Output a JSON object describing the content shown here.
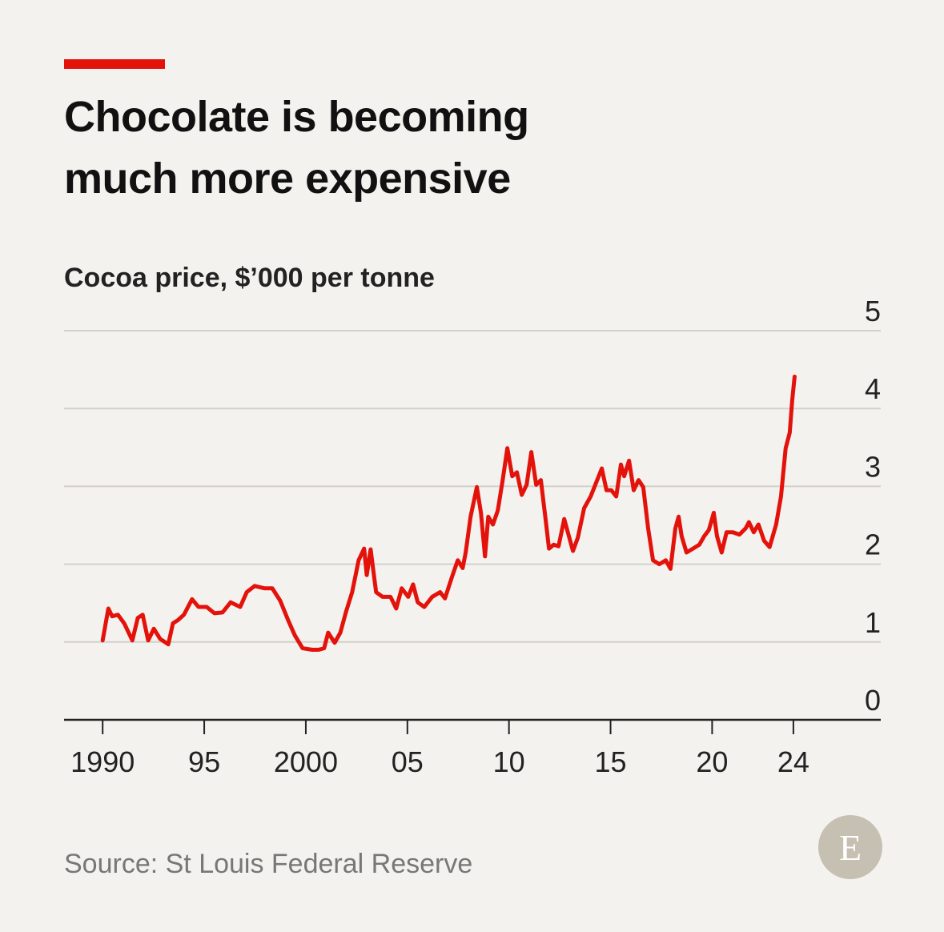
{
  "chart_data": {
    "type": "line",
    "title": "Chocolate is becoming much more expensive",
    "subtitle": "Cocoa price, $’000 per tonne",
    "source": "Source: St Louis Federal Reserve",
    "logo": "E",
    "xlim": [
      1988.1,
      2028.3
    ],
    "xticks": [
      1990,
      {
        "value": 1995,
        "label": "95"
      },
      2000,
      {
        "value": 2005,
        "label": "05"
      },
      {
        "value": 2010,
        "label": "10"
      },
      {
        "value": 2015,
        "label": "15"
      },
      {
        "value": 2020,
        "label": "20"
      },
      {
        "value": 2024,
        "label": "24"
      }
    ],
    "ylim": [
      0,
      5
    ],
    "yticks": [
      0,
      1,
      2,
      3,
      4,
      5
    ],
    "grid": true,
    "x": [
      1990.0,
      1990.28,
      1990.47,
      1990.75,
      1991.06,
      1991.46,
      1991.73,
      1991.97,
      1992.24,
      1992.52,
      1992.83,
      1993.23,
      1993.46,
      1993.7,
      1994.0,
      1994.4,
      1994.72,
      1995.12,
      1995.5,
      1995.9,
      1996.3,
      1996.77,
      1997.09,
      1997.48,
      1997.95,
      1998.35,
      1998.74,
      1999.13,
      1999.45,
      1999.84,
      2000.31,
      2000.63,
      2000.9,
      2001.1,
      2001.42,
      2001.7,
      2001.97,
      2002.28,
      2002.6,
      2002.87,
      2003.0,
      2003.19,
      2003.46,
      2003.78,
      2004.17,
      2004.45,
      2004.72,
      2005.04,
      2005.28,
      2005.51,
      2005.83,
      2006.22,
      2006.61,
      2006.85,
      2007.2,
      2007.48,
      2007.72,
      2007.87,
      2008.11,
      2008.42,
      2008.62,
      2008.82,
      2008.98,
      2009.21,
      2009.45,
      2009.69,
      2009.92,
      2010.16,
      2010.39,
      2010.63,
      2010.87,
      2011.1,
      2011.34,
      2011.57,
      2011.81,
      2011.97,
      2012.2,
      2012.44,
      2012.72,
      2012.95,
      2013.15,
      2013.39,
      2013.7,
      2014.02,
      2014.25,
      2014.57,
      2014.8,
      2015.04,
      2015.28,
      2015.51,
      2015.67,
      2015.91,
      2016.14,
      2016.38,
      2016.61,
      2016.85,
      2017.09,
      2017.4,
      2017.72,
      2017.95,
      2018.19,
      2018.35,
      2018.5,
      2018.74,
      2019.06,
      2019.37,
      2019.61,
      2019.84,
      2020.08,
      2020.24,
      2020.47,
      2020.71,
      2021.02,
      2021.34,
      2021.65,
      2021.81,
      2022.05,
      2022.28,
      2022.56,
      2022.83,
      2023.15,
      2023.39,
      2023.62,
      2023.82,
      2023.94,
      2024.06
    ],
    "series": [
      {
        "name": "Cocoa price",
        "color": "#e3120b",
        "values": [
          1.02,
          1.43,
          1.33,
          1.35,
          1.24,
          1.02,
          1.31,
          1.35,
          1.02,
          1.17,
          1.04,
          0.97,
          1.24,
          1.28,
          1.35,
          1.55,
          1.45,
          1.45,
          1.37,
          1.38,
          1.51,
          1.45,
          1.64,
          1.72,
          1.69,
          1.69,
          1.53,
          1.28,
          1.09,
          0.92,
          0.9,
          0.9,
          0.92,
          1.12,
          0.99,
          1.12,
          1.38,
          1.64,
          2.05,
          2.2,
          1.86,
          2.19,
          1.64,
          1.58,
          1.58,
          1.43,
          1.69,
          1.58,
          1.74,
          1.51,
          1.45,
          1.58,
          1.64,
          1.56,
          1.84,
          2.05,
          1.95,
          2.15,
          2.61,
          2.99,
          2.66,
          2.1,
          2.61,
          2.51,
          2.69,
          3.08,
          3.49,
          3.13,
          3.18,
          2.89,
          3.02,
          3.44,
          3.02,
          3.08,
          2.56,
          2.2,
          2.25,
          2.23,
          2.58,
          2.36,
          2.17,
          2.34,
          2.72,
          2.87,
          3.02,
          3.23,
          2.95,
          2.95,
          2.87,
          3.28,
          3.13,
          3.33,
          2.95,
          3.08,
          2.99,
          2.46,
          2.05,
          2.0,
          2.05,
          1.94,
          2.46,
          2.61,
          2.36,
          2.15,
          2.2,
          2.25,
          2.36,
          2.44,
          2.66,
          2.36,
          2.15,
          2.41,
          2.41,
          2.38,
          2.46,
          2.54,
          2.41,
          2.51,
          2.3,
          2.22,
          2.51,
          2.87,
          3.49,
          3.69,
          4.1,
          4.41
        ]
      }
    ]
  }
}
